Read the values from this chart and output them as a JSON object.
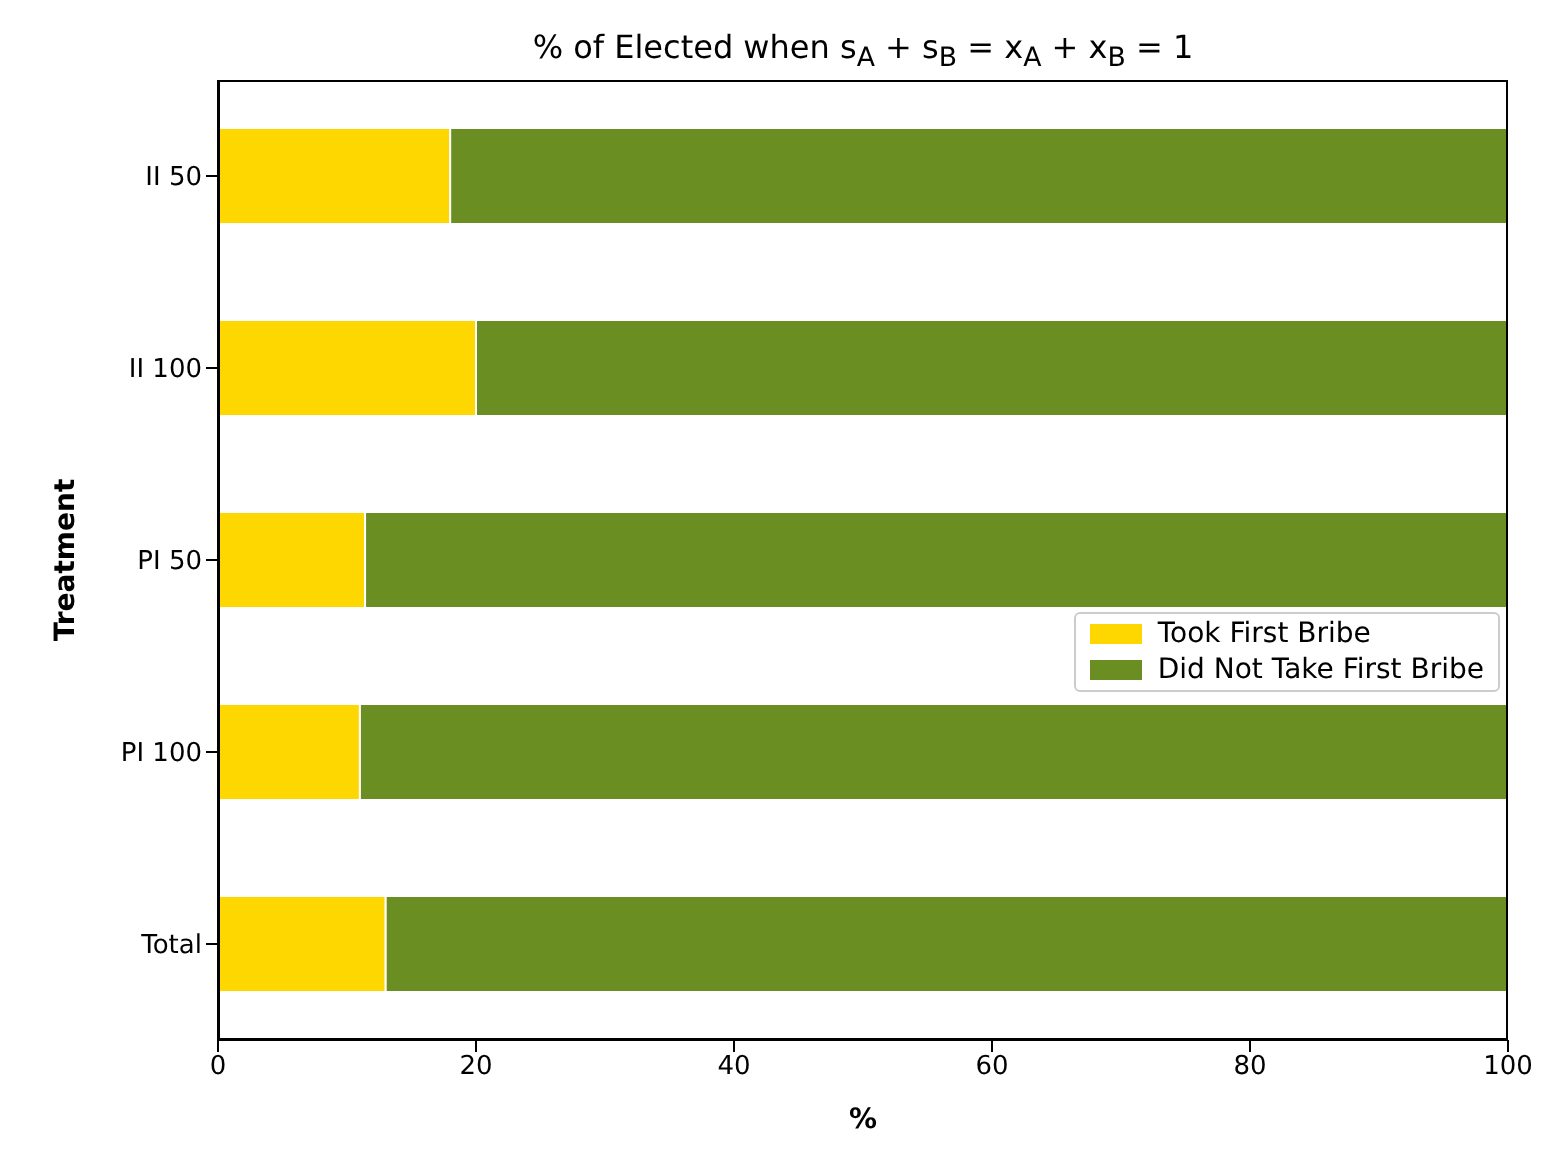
{
  "chart_data": {
    "type": "bar",
    "orientation": "horizontal",
    "stacked": true,
    "title": "% of Elected when s$_{A}$ + s$_{B}$ = x$_{A}$ + x$_{B}$ = 1",
    "xlabel": "%",
    "ylabel": "Treatment",
    "categories": [
      "II 50",
      "II 100",
      "PI 50",
      "PI 100",
      "Total"
    ],
    "series": [
      {
        "name": "Took First Bribe",
        "color": "#ffd700",
        "values": [
          18,
          20,
          11.4,
          11,
          13
        ]
      },
      {
        "name": "Did Not Take First Bribe",
        "color": "#6b8e23",
        "values": [
          82,
          80,
          88.6,
          89,
          87
        ]
      }
    ],
    "xlim": [
      0,
      100
    ],
    "xticks": [
      0,
      20,
      40,
      60,
      80,
      100
    ],
    "legend": "right"
  }
}
